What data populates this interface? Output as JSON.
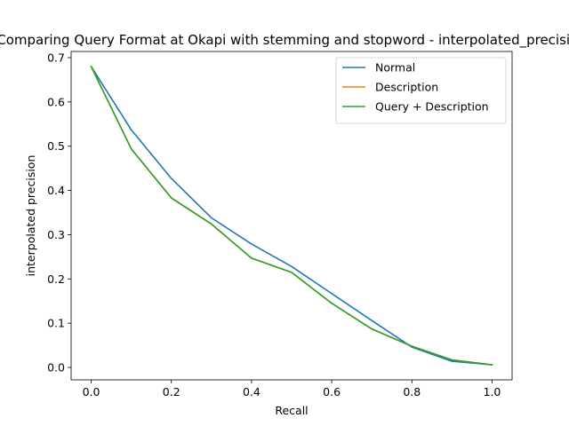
{
  "chart_data": {
    "type": "line",
    "title": "Comparing Query Format at Okapi with stemming and stopword - interpolated_precision",
    "xlabel": "Recall",
    "ylabel": "interpolated precision",
    "xlim": [
      -0.05,
      1.05
    ],
    "ylim": [
      -0.028,
      0.714
    ],
    "x_ticks": [
      "0.0",
      "0.2",
      "0.4",
      "0.6",
      "0.8",
      "1.0"
    ],
    "y_ticks": [
      "0.0",
      "0.1",
      "0.2",
      "0.3",
      "0.4",
      "0.5",
      "0.6",
      "0.7"
    ],
    "grid": false,
    "legend_position": "upper right",
    "x": [
      0.0,
      0.1,
      0.2,
      0.3,
      0.4,
      0.5,
      0.6,
      0.7,
      0.8,
      0.9,
      1.0
    ],
    "series": [
      {
        "name": "Normal",
        "color": "#1f77b4",
        "values": [
          0.68,
          0.537,
          0.427,
          0.338,
          0.279,
          0.228,
          0.167,
          0.106,
          0.046,
          0.014,
          0.006
        ]
      },
      {
        "name": "Description",
        "color": "#ff7f0e",
        "values": [
          0.68,
          0.494,
          0.383,
          0.324,
          0.247,
          0.215,
          0.145,
          0.087,
          0.048,
          0.017,
          0.006
        ]
      },
      {
        "name": "Query + Description",
        "color": "#2ca02c",
        "values": [
          0.68,
          0.494,
          0.383,
          0.324,
          0.247,
          0.215,
          0.145,
          0.087,
          0.048,
          0.017,
          0.006
        ]
      }
    ]
  }
}
